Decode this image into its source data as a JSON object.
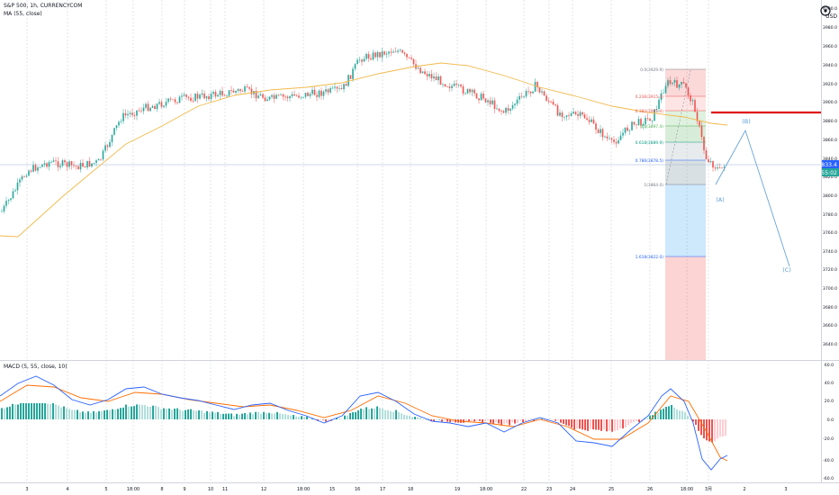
{
  "header": {
    "symbol_line": "S&P 500, 1h, CURRENCYCOM",
    "ma_line": "MA (55, close)",
    "currency": "USD"
  },
  "indicator": {
    "macd_label": "MACD (5, 55, close, 10)"
  },
  "price_axis": {
    "ticks": [
      "4000.0",
      "3980.0",
      "3960.0",
      "3940.0",
      "3920.0",
      "3900.0",
      "3880.0",
      "3860.0",
      "3840.0",
      "3820.0",
      "3800.0",
      "3780.0",
      "3760.0",
      "3740.0",
      "3720.0",
      "3700.0",
      "3680.0",
      "3660.0",
      "3640.0",
      "3620.0"
    ],
    "last_price": "3833.4",
    "countdown": "55:02"
  },
  "macd_axis": {
    "ticks": [
      "60.0",
      "40.0",
      "20.0",
      "0.0",
      "-20.0",
      "-40.0",
      "-60.0"
    ]
  },
  "time_axis": {
    "ticks": [
      "3",
      "4",
      "5",
      "18:00",
      "8",
      "9",
      "10",
      "11",
      "12",
      "18:00",
      "15",
      "16",
      "17",
      "18",
      "19",
      "18:00",
      "22",
      "23",
      "24",
      "25",
      "26",
      "18:00",
      "3月",
      "2",
      "3"
    ]
  },
  "fib_levels": [
    "0.0(3929.9)",
    "0.236(3915.3)",
    "0.382(3905.4)",
    "0.5(3897.4)",
    "0.618(3889.9)",
    "0.786(3878.5)",
    "1(3864.0)",
    "1.618(3822.0)"
  ],
  "wave_labels": [
    "(A)",
    "(B)",
    "(C)"
  ],
  "colors": {
    "up": "#26a69a",
    "down": "#ef5350",
    "ma": "#f2b94c",
    "macd": "#2962ff",
    "signal": "#ff6d00",
    "resistance": "#e01010",
    "wave": "#5b9bd5"
  }
}
